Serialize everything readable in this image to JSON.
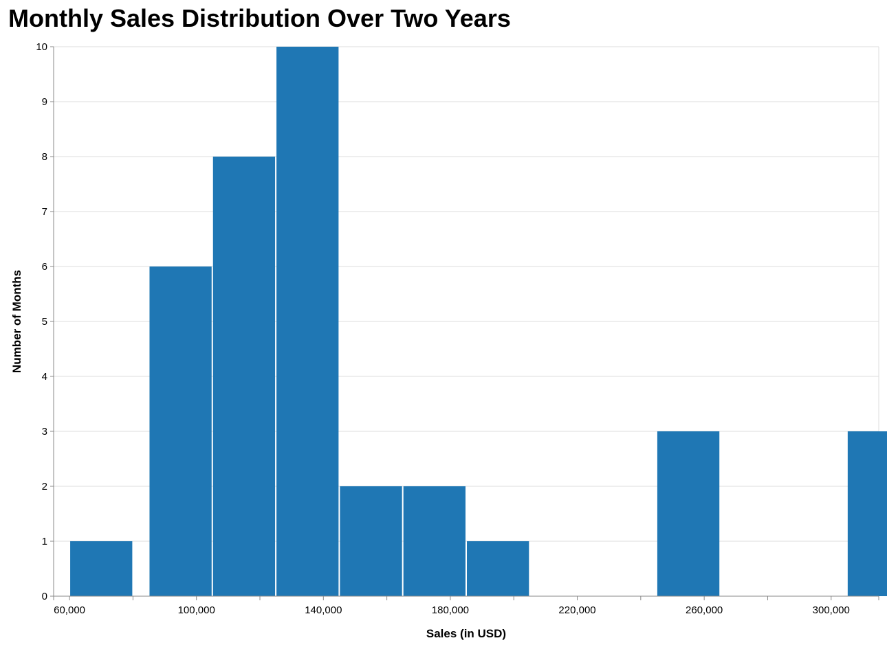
{
  "chart_data": {
    "type": "bar",
    "title": "Monthly Sales Distribution Over Two Years",
    "xlabel": "Sales (in USD)",
    "ylabel": "Number of Months",
    "bin_width": 20000,
    "bins": [
      {
        "start": 60000,
        "end": 80000,
        "count": 1
      },
      {
        "start": 85000,
        "end": 105000,
        "count": 6
      },
      {
        "start": 105000,
        "end": 125000,
        "count": 8
      },
      {
        "start": 125000,
        "end": 145000,
        "count": 10
      },
      {
        "start": 145000,
        "end": 165000,
        "count": 2
      },
      {
        "start": 165000,
        "end": 185000,
        "count": 2
      },
      {
        "start": 185000,
        "end": 205000,
        "count": 1
      },
      {
        "start": 245000,
        "end": 265000,
        "count": 3
      },
      {
        "start": 305000,
        "end": 325000,
        "count": 3
      }
    ],
    "xlim": [
      55000,
      315000
    ],
    "ylim": [
      0,
      10
    ],
    "x_ticks": [
      60000,
      80000,
      100000,
      120000,
      140000,
      160000,
      180000,
      200000,
      220000,
      240000,
      260000,
      280000,
      300000,
      320000
    ],
    "x_tick_labels": [
      "60,000",
      "",
      "100,000",
      "",
      "140,000",
      "",
      "180,000",
      "",
      "220,000",
      "",
      "260,000",
      "",
      "300,000",
      ""
    ],
    "y_ticks": [
      0,
      1,
      2,
      3,
      4,
      5,
      6,
      7,
      8,
      9,
      10
    ],
    "y_tick_labels": [
      "0",
      "1",
      "2",
      "3",
      "4",
      "5",
      "6",
      "7",
      "8",
      "9",
      "10"
    ],
    "grid": true,
    "bar_color": "#1f77b4",
    "grid_color": "#dddddd",
    "axis_color": "#888888"
  }
}
